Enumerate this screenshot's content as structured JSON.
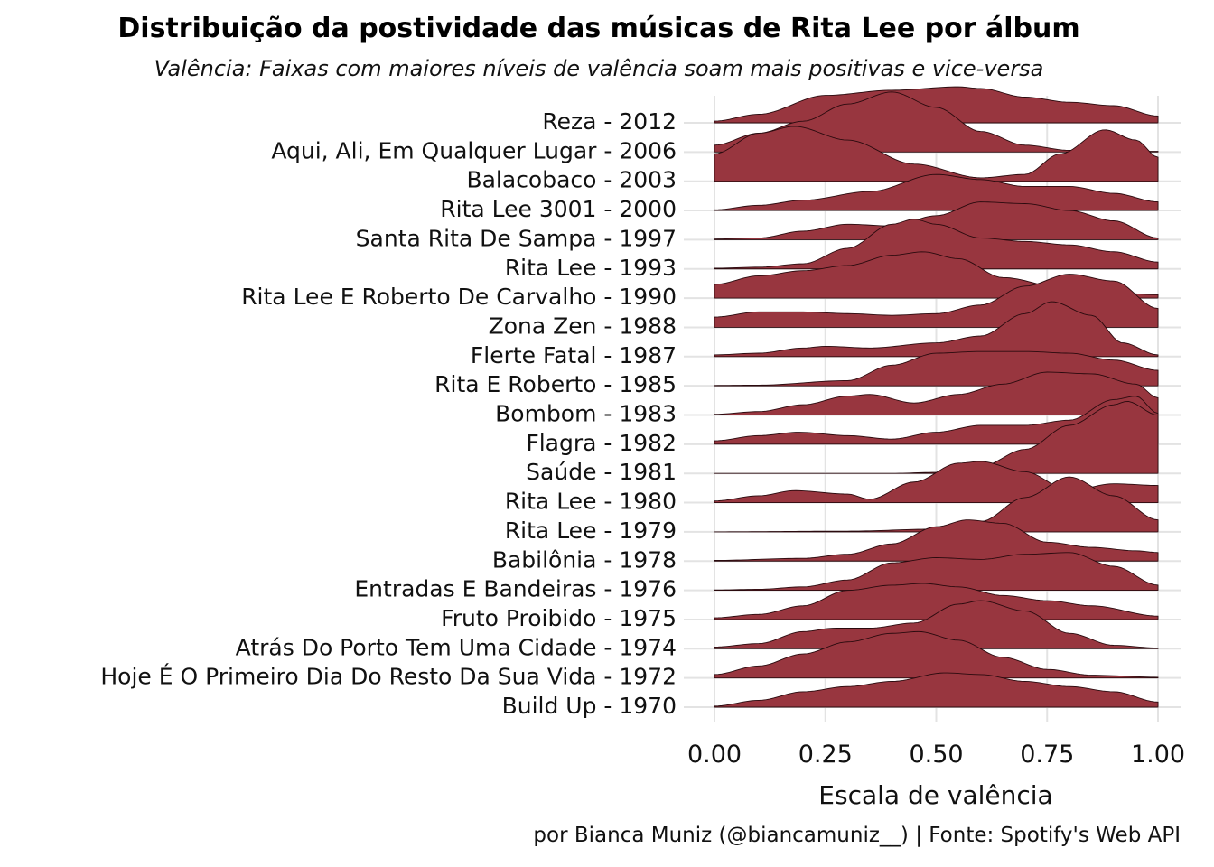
{
  "chart_data": {
    "type": "ridgeline",
    "title": "Distribuição da postividade das músicas de Rita Lee por álbum",
    "subtitle": "Valência: Faixas com maiores níveis de valência soam mais positivas e vice-versa",
    "xlabel": "Escala de valência",
    "caption": "por Bianca Muniz (@biancamuniz__) | Fonte: Spotify's Web API",
    "xlim": [
      0,
      1
    ],
    "xticks": [
      "0.00",
      "0.25",
      "0.50",
      "0.75",
      "1.00"
    ],
    "grid": true,
    "fill_color": "#98363F",
    "line_color": "#2a0a0e",
    "categories": [
      "Reza - 2012",
      "Aqui, Ali, Em Qualquer Lugar - 2006",
      "Balacobaco - 2003",
      "Rita Lee 3001 - 2000",
      "Santa Rita De Sampa - 1997",
      "Rita Lee - 1993",
      "Rita Lee E Roberto De Carvalho - 1990",
      "Zona Zen - 1988",
      "Flerte Fatal - 1987",
      "Rita E Roberto - 1985",
      "Bombom - 1983",
      "Flagra - 1982",
      "Saúde - 1981",
      "Rita Lee - 1980",
      "Rita Lee - 1979",
      "Babilônia - 1978",
      "Entradas E Bandeiras - 1976",
      "Fruto Proibido - 1975",
      "Atrás Do Porto Tem Uma Cidade - 1974",
      "Hoje É O Primeiro Dia Do Resto Da Sua Vida - 1972",
      "Build Up - 1970"
    ],
    "series": [
      {
        "x": [
          0,
          0.1,
          0.25,
          0.4,
          0.55,
          0.6,
          0.7,
          0.8,
          0.9,
          1.0
        ],
        "density": [
          0.05,
          0.25,
          0.8,
          0.95,
          1.05,
          1.0,
          0.75,
          0.6,
          0.5,
          0.2
        ]
      },
      {
        "x": [
          0,
          0.1,
          0.2,
          0.3,
          0.4,
          0.5,
          0.6,
          0.7,
          0.8,
          0.9,
          1.0
        ],
        "density": [
          0.2,
          0.55,
          0.9,
          1.4,
          1.75,
          1.3,
          0.6,
          0.2,
          0.05,
          0.02,
          0.02
        ]
      },
      {
        "x": [
          0,
          0.1,
          0.18,
          0.3,
          0.45,
          0.6,
          0.7,
          0.78,
          0.88,
          0.95,
          1.0
        ],
        "density": [
          0.8,
          1.4,
          1.6,
          1.2,
          0.5,
          0.1,
          0.2,
          0.8,
          1.5,
          1.2,
          0.7
        ]
      },
      {
        "x": [
          0,
          0.1,
          0.2,
          0.35,
          0.5,
          0.6,
          0.7,
          0.8,
          0.9,
          1.0
        ],
        "density": [
          0.02,
          0.15,
          0.3,
          0.55,
          1.05,
          0.9,
          0.7,
          0.7,
          0.5,
          0.25
        ]
      },
      {
        "x": [
          0,
          0.1,
          0.2,
          0.3,
          0.4,
          0.5,
          0.6,
          0.7,
          0.8,
          0.9,
          1.0
        ],
        "density": [
          0.02,
          0.05,
          0.25,
          0.45,
          0.4,
          0.7,
          1.1,
          1.05,
          0.85,
          0.55,
          0.05
        ]
      },
      {
        "x": [
          0,
          0.1,
          0.2,
          0.3,
          0.4,
          0.45,
          0.5,
          0.6,
          0.7,
          0.8,
          0.9,
          1.0
        ],
        "density": [
          0.02,
          0.05,
          0.15,
          0.6,
          1.3,
          1.45,
          1.3,
          0.9,
          0.8,
          0.7,
          0.5,
          0.2
        ]
      },
      {
        "x": [
          0,
          0.1,
          0.2,
          0.3,
          0.4,
          0.47,
          0.55,
          0.65,
          0.8,
          0.9,
          1.0
        ],
        "density": [
          0.4,
          0.65,
          0.8,
          0.95,
          1.25,
          1.35,
          1.15,
          0.6,
          0.25,
          0.15,
          0.1
        ]
      },
      {
        "x": [
          0,
          0.1,
          0.2,
          0.3,
          0.4,
          0.5,
          0.6,
          0.7,
          0.8,
          0.9,
          1.0
        ],
        "density": [
          0.3,
          0.45,
          0.45,
          0.4,
          0.35,
          0.4,
          0.65,
          1.2,
          1.55,
          1.35,
          0.55
        ]
      },
      {
        "x": [
          0,
          0.1,
          0.2,
          0.25,
          0.35,
          0.5,
          0.6,
          0.7,
          0.76,
          0.85,
          0.92,
          1.0
        ],
        "density": [
          0.05,
          0.1,
          0.25,
          0.3,
          0.25,
          0.4,
          0.6,
          1.25,
          1.6,
          1.2,
          0.4,
          0.05
        ]
      },
      {
        "x": [
          0,
          0.1,
          0.3,
          0.4,
          0.5,
          0.6,
          0.7,
          0.8,
          0.9,
          1.0
        ],
        "density": [
          0.01,
          0.02,
          0.15,
          0.6,
          0.95,
          1.0,
          1.0,
          0.95,
          0.75,
          0.45
        ]
      },
      {
        "x": [
          0,
          0.1,
          0.2,
          0.3,
          0.35,
          0.45,
          0.55,
          0.65,
          0.75,
          0.85,
          0.95,
          1.0
        ],
        "density": [
          0.02,
          0.1,
          0.3,
          0.55,
          0.6,
          0.35,
          0.6,
          0.9,
          1.25,
          1.2,
          0.9,
          0.5
        ]
      },
      {
        "x": [
          0,
          0.1,
          0.19,
          0.3,
          0.4,
          0.5,
          0.6,
          0.7,
          0.8,
          0.9,
          0.95,
          1.0
        ],
        "density": [
          0.1,
          0.25,
          0.35,
          0.25,
          0.15,
          0.35,
          0.55,
          0.55,
          0.7,
          1.3,
          1.4,
          0.9
        ]
      },
      {
        "x": [
          0,
          0.2,
          0.4,
          0.5,
          0.6,
          0.7,
          0.8,
          0.9,
          0.93,
          1.0
        ],
        "density": [
          0,
          0,
          0,
          0.03,
          0.2,
          0.7,
          1.4,
          2.0,
          2.1,
          1.7
        ]
      },
      {
        "x": [
          0,
          0.1,
          0.18,
          0.3,
          0.35,
          0.45,
          0.55,
          0.6,
          0.7,
          0.8,
          0.9,
          1.0
        ],
        "density": [
          0.05,
          0.2,
          0.35,
          0.25,
          0.1,
          0.6,
          1.15,
          1.2,
          0.9,
          0.35,
          0.55,
          0.5
        ]
      },
      {
        "x": [
          0,
          0.3,
          0.5,
          0.6,
          0.7,
          0.8,
          0.9,
          1.0
        ],
        "density": [
          0,
          0.02,
          0.08,
          0.3,
          1.0,
          1.6,
          1.05,
          0.35
        ]
      },
      {
        "x": [
          0,
          0.2,
          0.3,
          0.4,
          0.5,
          0.57,
          0.65,
          0.75,
          0.85,
          0.95,
          1.0
        ],
        "density": [
          0.02,
          0.08,
          0.2,
          0.5,
          1.0,
          1.2,
          1.1,
          0.55,
          0.4,
          0.3,
          0.25
        ]
      },
      {
        "x": [
          0,
          0.1,
          0.2,
          0.3,
          0.4,
          0.5,
          0.6,
          0.7,
          0.8,
          0.9,
          1.0
        ],
        "density": [
          0.01,
          0.03,
          0.1,
          0.3,
          0.8,
          0.95,
          0.9,
          1.05,
          1.1,
          0.7,
          0.15
        ]
      },
      {
        "x": [
          0,
          0.1,
          0.2,
          0.3,
          0.4,
          0.47,
          0.55,
          0.65,
          0.75,
          0.85,
          1.0
        ],
        "density": [
          0.05,
          0.15,
          0.4,
          0.85,
          1.0,
          1.05,
          0.95,
          0.7,
          0.55,
          0.4,
          0.1
        ]
      },
      {
        "x": [
          0,
          0.1,
          0.2,
          0.27,
          0.35,
          0.45,
          0.55,
          0.6,
          0.7,
          0.8,
          0.9,
          1.0
        ],
        "density": [
          0.05,
          0.15,
          0.5,
          0.6,
          0.6,
          0.75,
          1.3,
          1.4,
          1.1,
          0.45,
          0.1,
          0.02
        ]
      },
      {
        "x": [
          0,
          0.1,
          0.2,
          0.3,
          0.4,
          0.46,
          0.55,
          0.65,
          0.75,
          0.85,
          1.0
        ],
        "density": [
          0.1,
          0.35,
          0.7,
          1.05,
          1.3,
          1.35,
          1.1,
          0.6,
          0.25,
          0.08,
          0.02
        ]
      },
      {
        "x": [
          0,
          0.1,
          0.2,
          0.3,
          0.4,
          0.52,
          0.6,
          0.7,
          0.8,
          0.9,
          1.0
        ],
        "density": [
          0.03,
          0.2,
          0.45,
          0.6,
          0.75,
          1.0,
          0.95,
          0.75,
          0.6,
          0.45,
          0.15
        ]
      }
    ]
  }
}
